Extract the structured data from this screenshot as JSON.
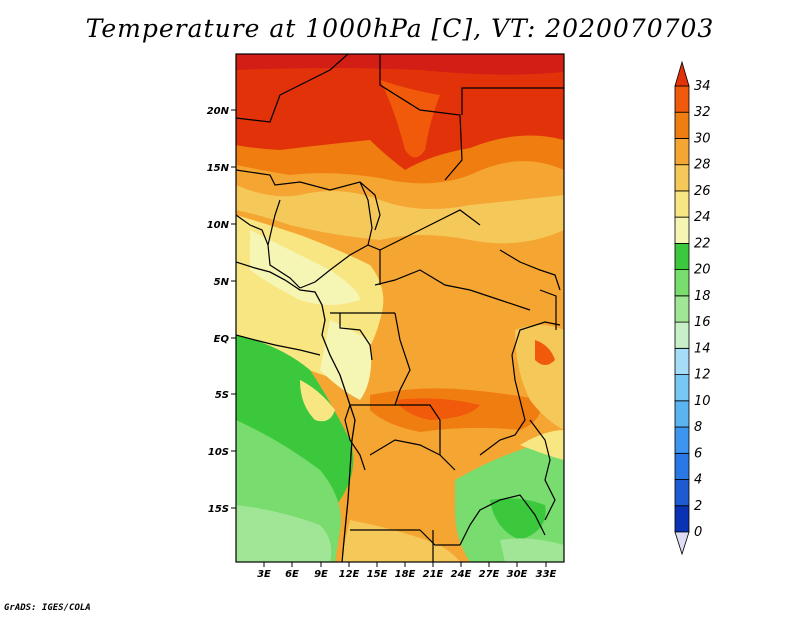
{
  "title": "Temperature at 1000hPa [C], VT: 2020070703",
  "credit": "GrADS: IGES/COLA",
  "map": {
    "lat_labels": [
      "20N",
      "15N",
      "10N",
      "5N",
      "EQ",
      "5S",
      "10S",
      "15S"
    ],
    "lon_labels": [
      "3E",
      "6E",
      "9E",
      "12E",
      "15E",
      "18E",
      "21E",
      "24E",
      "27E",
      "30E",
      "33E"
    ]
  },
  "colorbar": {
    "labels": [
      "34",
      "32",
      "30",
      "28",
      "26",
      "24",
      "22",
      "20",
      "18",
      "16",
      "14",
      "12",
      "10",
      "8",
      "6",
      "4",
      "2",
      "0"
    ],
    "colors": [
      "#0a0a78",
      "#0a32b4",
      "#1e5ad2",
      "#2a78e6",
      "#3c96f0",
      "#5ab4f0",
      "#78c8f5",
      "#a5dcf8",
      "#c8f0c8",
      "#a0e696",
      "#78dc6e",
      "#3cc83c",
      "#f5f5b4",
      "#f8e682",
      "#f5c85a",
      "#f5a532",
      "#f07d0f",
      "#f05a0a",
      "#e1320a",
      "#d21e14"
    ],
    "under_color": "#dcdcf5",
    "over_color": "#e1320a"
  }
}
